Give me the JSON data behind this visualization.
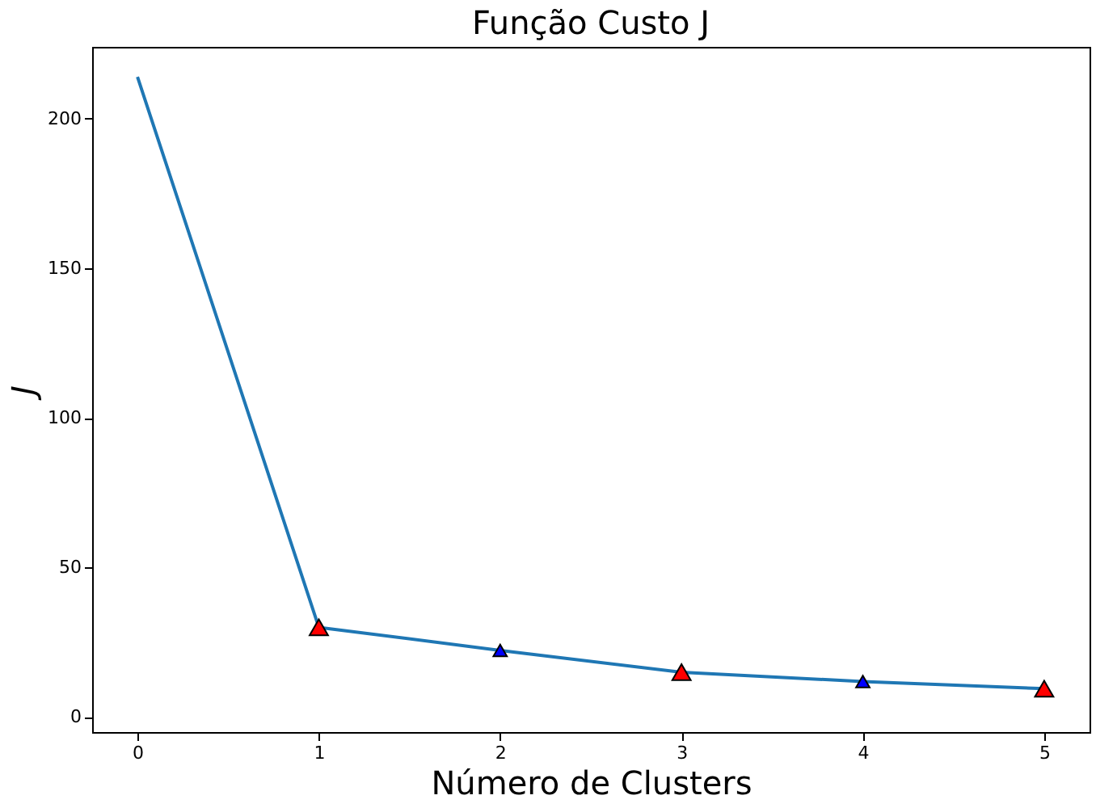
{
  "chart_data": {
    "type": "line",
    "title": "Função Custo J",
    "xlabel": "Número de Clusters",
    "ylabel": "J",
    "x": [
      0,
      1,
      2,
      3,
      4,
      5
    ],
    "series": [
      {
        "color": "#1f77b4",
        "values": [
          214,
          30,
          22.3,
          15,
          11.9,
          9.5
        ],
        "marker": "none"
      },
      {
        "type": "scatter",
        "color": "#ff0000",
        "x": [
          1,
          3,
          5
        ],
        "values": [
          30,
          15,
          9.5
        ],
        "marker": "triangle"
      },
      {
        "type": "scatter",
        "color": "#0000ff",
        "x": [
          2,
          4
        ],
        "values": [
          22.3,
          11.9
        ],
        "marker": "triangle"
      }
    ],
    "xlim": [
      -0.25,
      5.25
    ],
    "xticks": [
      0,
      1,
      2,
      3,
      4,
      5
    ],
    "ylim": [
      -5,
      224
    ],
    "yticks": [
      0,
      50,
      100,
      150,
      200
    ],
    "grid": false
  }
}
